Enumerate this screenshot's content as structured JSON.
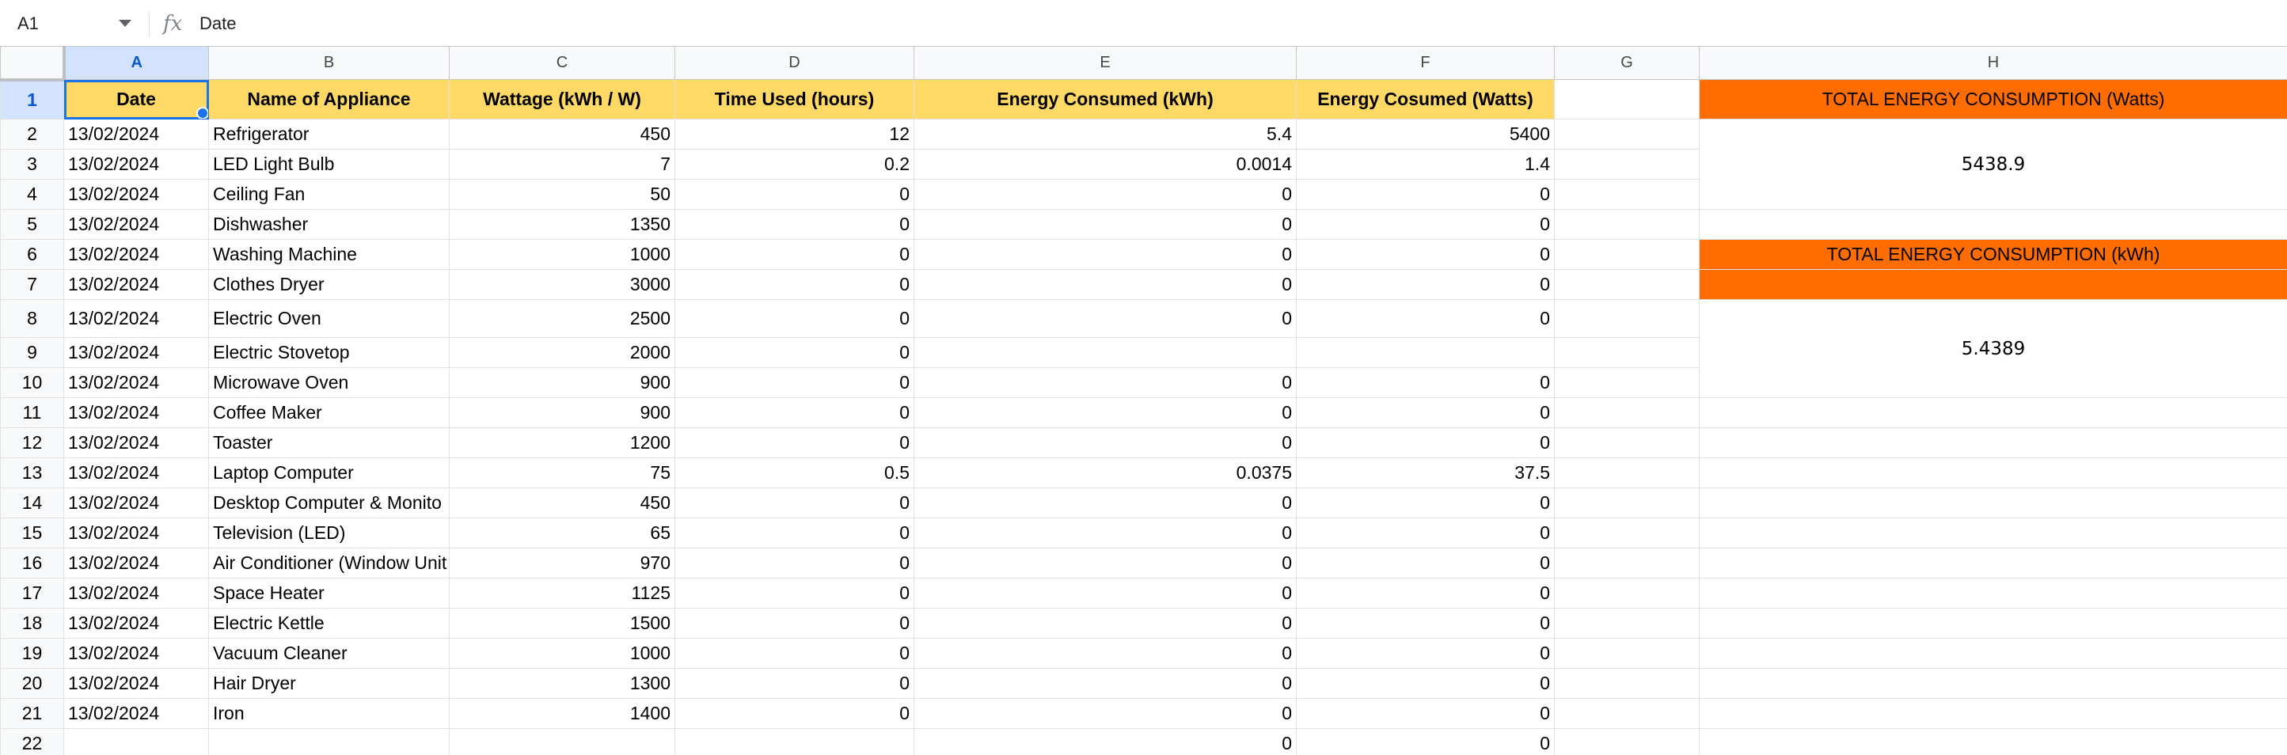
{
  "formula_bar": {
    "cell_ref": "A1",
    "fx_icon": "fx-icon",
    "formula": "Date"
  },
  "columns": [
    "A",
    "B",
    "C",
    "D",
    "E",
    "F",
    "G",
    "H"
  ],
  "headers": {
    "date": "Date",
    "name": "Name of Appliance",
    "wattage": "Wattage (kWh / W)",
    "time": "Time Used (hours)",
    "energy_kwh": "Energy Consumed (kWh)",
    "energy_watts": "Energy Cosumed (Watts)"
  },
  "rows": [
    {
      "n": "2",
      "date": "13/02/2024",
      "name": "Refrigerator",
      "wattage": "450",
      "time": "12",
      "kwh": "5.4",
      "watts": "5400"
    },
    {
      "n": "3",
      "date": "13/02/2024",
      "name": "LED Light Bulb",
      "wattage": "7",
      "time": "0.2",
      "kwh": "0.0014",
      "watts": "1.4"
    },
    {
      "n": "4",
      "date": "13/02/2024",
      "name": "Ceiling Fan",
      "wattage": "50",
      "time": "0",
      "kwh": "0",
      "watts": "0"
    },
    {
      "n": "5",
      "date": "13/02/2024",
      "name": "Dishwasher",
      "wattage": "1350",
      "time": "0",
      "kwh": "0",
      "watts": "0"
    },
    {
      "n": "6",
      "date": "13/02/2024",
      "name": "Washing Machine",
      "wattage": "1000",
      "time": "0",
      "kwh": "0",
      "watts": "0"
    },
    {
      "n": "7",
      "date": "13/02/2024",
      "name": "Clothes Dryer",
      "wattage": "3000",
      "time": "0",
      "kwh": "0",
      "watts": "0"
    },
    {
      "n": "8",
      "date": "13/02/2024",
      "name": "Electric Oven",
      "wattage": "2500",
      "time": "0",
      "kwh": "0",
      "watts": "0"
    },
    {
      "n": "9",
      "date": "13/02/2024",
      "name": "Electric Stovetop",
      "wattage": "2000",
      "time": "0",
      "kwh": "",
      "watts": ""
    },
    {
      "n": "10",
      "date": "13/02/2024",
      "name": "Microwave Oven",
      "wattage": "900",
      "time": "0",
      "kwh": "0",
      "watts": "0"
    },
    {
      "n": "11",
      "date": "13/02/2024",
      "name": "Coffee Maker",
      "wattage": "900",
      "time": "0",
      "kwh": "0",
      "watts": "0"
    },
    {
      "n": "12",
      "date": "13/02/2024",
      "name": "Toaster",
      "wattage": "1200",
      "time": "0",
      "kwh": "0",
      "watts": "0"
    },
    {
      "n": "13",
      "date": "13/02/2024",
      "name": "Laptop Computer",
      "wattage": "75",
      "time": "0.5",
      "kwh": "0.0375",
      "watts": "37.5"
    },
    {
      "n": "14",
      "date": "13/02/2024",
      "name": "Desktop Computer & Monito",
      "wattage": "450",
      "time": "0",
      "kwh": "0",
      "watts": "0"
    },
    {
      "n": "15",
      "date": "13/02/2024",
      "name": "Television (LED)",
      "wattage": "65",
      "time": "0",
      "kwh": "0",
      "watts": "0"
    },
    {
      "n": "16",
      "date": "13/02/2024",
      "name": "Air Conditioner (Window Unit",
      "wattage": "970",
      "time": "0",
      "kwh": "0",
      "watts": "0"
    },
    {
      "n": "17",
      "date": "13/02/2024",
      "name": "Space Heater",
      "wattage": "1125",
      "time": "0",
      "kwh": "0",
      "watts": "0"
    },
    {
      "n": "18",
      "date": "13/02/2024",
      "name": "Electric Kettle",
      "wattage": "1500",
      "time": "0",
      "kwh": "0",
      "watts": "0"
    },
    {
      "n": "19",
      "date": "13/02/2024",
      "name": "Vacuum Cleaner",
      "wattage": "1000",
      "time": "0",
      "kwh": "0",
      "watts": "0"
    },
    {
      "n": "20",
      "date": "13/02/2024",
      "name": "Hair Dryer",
      "wattage": "1300",
      "time": "0",
      "kwh": "0",
      "watts": "0"
    },
    {
      "n": "21",
      "date": "13/02/2024",
      "name": "Iron",
      "wattage": "1400",
      "time": "0",
      "kwh": "0",
      "watts": "0"
    },
    {
      "n": "22",
      "date": "",
      "name": "",
      "wattage": "",
      "time": "",
      "kwh": "0",
      "watts": "0"
    }
  ],
  "summary": {
    "watts_title": "TOTAL ENERGY CONSUMPTION (Watts)",
    "watts_value": "5438.9",
    "kwh_title": "TOTAL ENERGY CONSUMPTION (kWh)",
    "kwh_value": "5.4389"
  },
  "colors": {
    "header_fill": "#ffd966",
    "banner_fill": "#ff6d01",
    "selection": "#1a73e8"
  }
}
